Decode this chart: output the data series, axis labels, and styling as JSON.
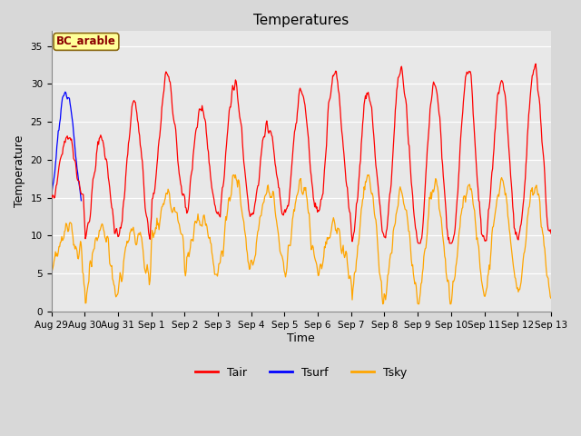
{
  "title": "Temperatures",
  "xlabel": "Time",
  "ylabel": "Temperature",
  "annotation": "BC_arable",
  "legend_labels": [
    "Tair",
    "Tsurf",
    "Tsky"
  ],
  "legend_colors": [
    "#FF0000",
    "#0000FF",
    "#FFA500"
  ],
  "ylim": [
    0,
    37
  ],
  "yticks": [
    0,
    5,
    10,
    15,
    20,
    25,
    30,
    35
  ],
  "xtick_labels": [
    "Aug 29",
    "Aug 30",
    "Aug 31",
    "Sep 1",
    "Sep 2",
    "Sep 3",
    "Sep 4",
    "Sep 5",
    "Sep 6",
    "Sep 7",
    "Sep 8",
    "Sep 9",
    "Sep 10",
    "Sep 11",
    "Sep 12",
    "Sep 13"
  ],
  "background_color": "#D8D8D8",
  "plot_bg_color": "#E8E8E8",
  "title_fontsize": 11,
  "axis_fontsize": 9,
  "tick_fontsize": 7.5,
  "n_days": 15,
  "seed": 7
}
